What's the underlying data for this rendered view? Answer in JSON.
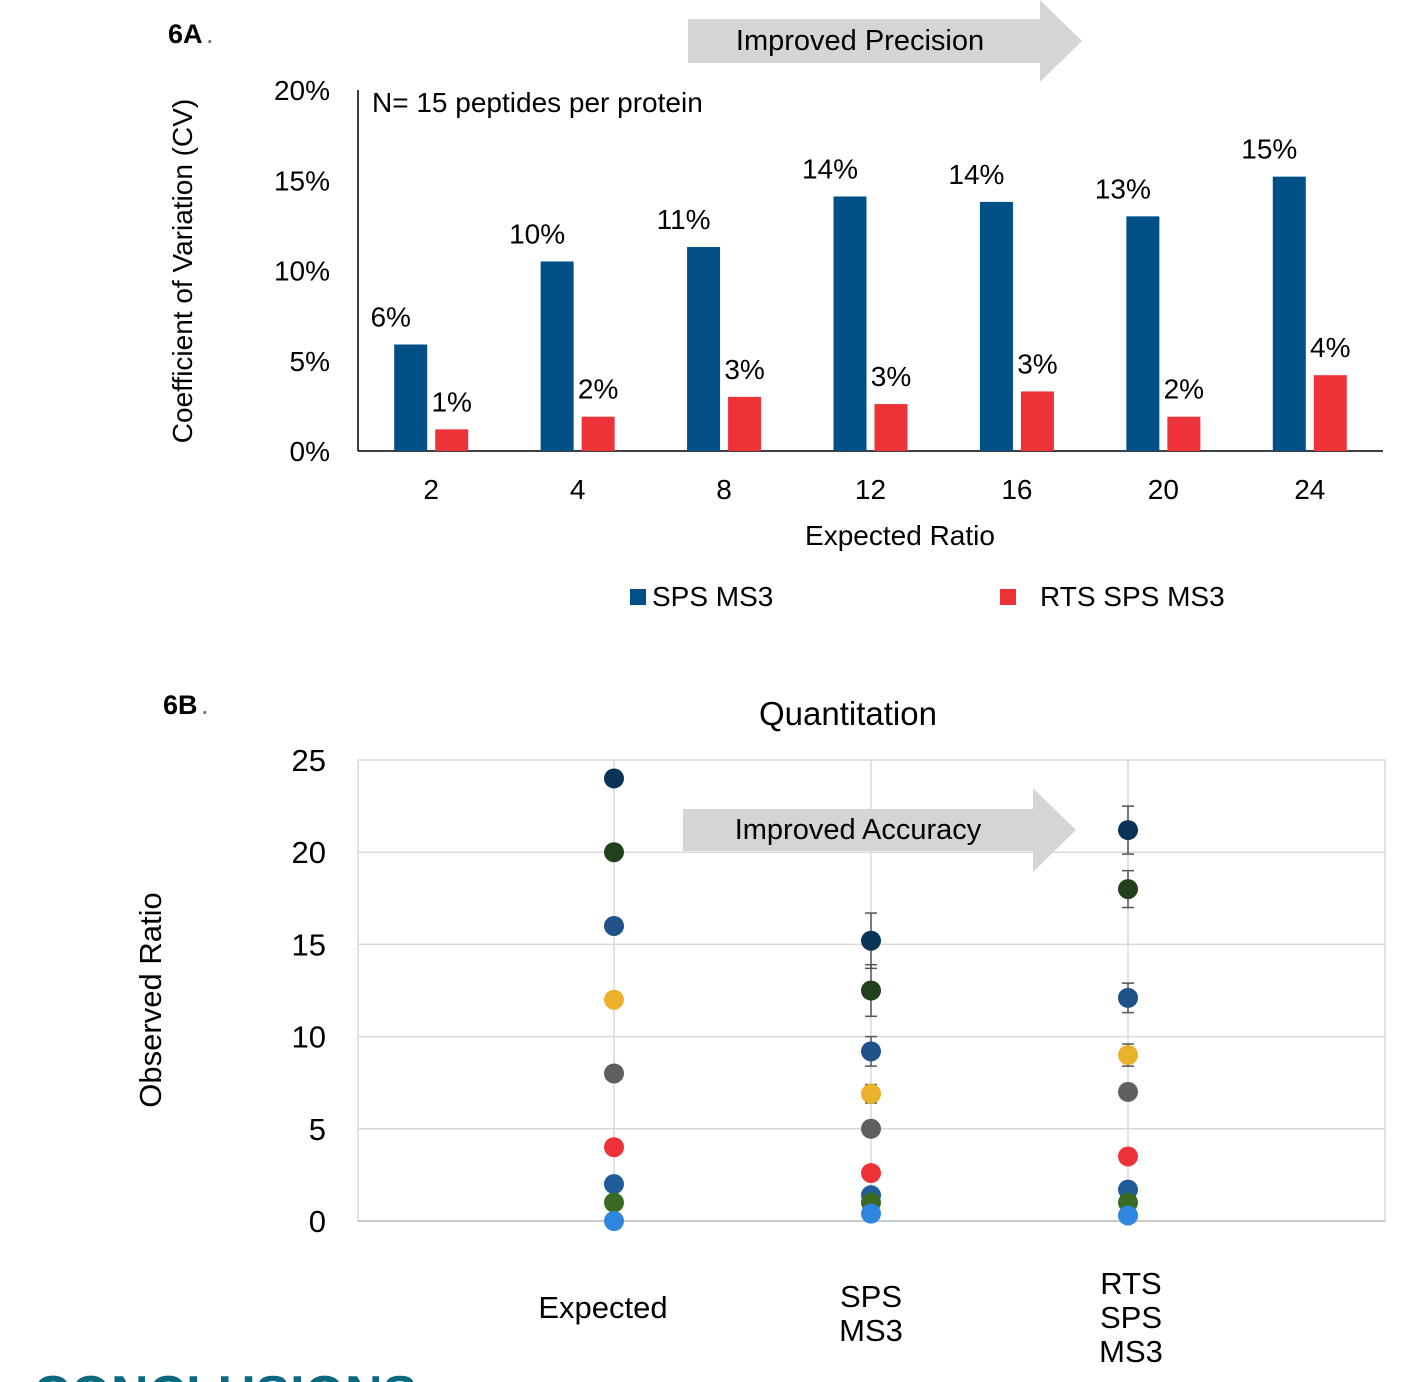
{
  "panel_a_label": "6A",
  "panel_b_label": "6B",
  "conclusions_heading": "CONCLUSIONS",
  "colors": {
    "sps": "#005088",
    "rts": "#ee3338",
    "arrow": "#d4d5d7",
    "heading": "#0b6a80",
    "grid": "#d9d9d9",
    "point_colors": [
      "#2e86de",
      "#3a6b22",
      "#1f5c99",
      "#ee3338",
      "#5f5f5f",
      "#eab12a",
      "#1f5288",
      "#22401c",
      "#0a3358"
    ]
  },
  "chart_data": [
    {
      "type": "bar",
      "arrow_label": "Improved Precision",
      "annotation": "N= 15 peptides per protein",
      "ylabel": "Coefficient of Variation (CV)",
      "xlabel": "Expected Ratio",
      "ylim": [
        0,
        20
      ],
      "yticks": [
        "0%",
        "5%",
        "10%",
        "15%",
        "20%"
      ],
      "categories": [
        "2",
        "4",
        "8",
        "12",
        "16",
        "20",
        "24"
      ],
      "series": [
        {
          "name": "SPS MS3",
          "values": [
            5.9,
            10.5,
            11.3,
            14.1,
            13.8,
            13.0,
            15.2
          ],
          "labels": [
            "6%",
            "10%",
            "11%",
            "14%",
            "14%",
            "13%",
            "15%"
          ]
        },
        {
          "name": "RTS SPS MS3",
          "values": [
            1.2,
            1.9,
            3.0,
            2.6,
            3.3,
            1.9,
            4.2
          ],
          "labels": [
            "1%",
            "2%",
            "3%",
            "3%",
            "3%",
            "2%",
            "4%"
          ]
        }
      ],
      "legend_position": "bottom"
    },
    {
      "type": "scatter",
      "title": "Quantitation",
      "arrow_label": "Improved Accuracy",
      "ylabel": "Observed Ratio",
      "ylim": [
        0,
        25
      ],
      "yticks": [
        "0",
        "5",
        "10",
        "15",
        "20",
        "25"
      ],
      "categories": [
        [
          "Expected"
        ],
        [
          "SPS",
          "MS3"
        ],
        [
          "RTS",
          "SPS",
          "MS3"
        ]
      ],
      "grid": true,
      "points": [
        {
          "cat": 0,
          "y": 24,
          "color": 8
        },
        {
          "cat": 0,
          "y": 20,
          "color": 7
        },
        {
          "cat": 0,
          "y": 16,
          "color": 6
        },
        {
          "cat": 0,
          "y": 12,
          "color": 5
        },
        {
          "cat": 0,
          "y": 8,
          "color": 4
        },
        {
          "cat": 0,
          "y": 4,
          "color": 3
        },
        {
          "cat": 0,
          "y": 2,
          "color": 2
        },
        {
          "cat": 0,
          "y": 1,
          "color": 1
        },
        {
          "cat": 0,
          "y": 0,
          "color": 0
        },
        {
          "cat": 1,
          "y": 15.2,
          "err": 1.5,
          "color": 8
        },
        {
          "cat": 1,
          "y": 12.5,
          "err": 1.4,
          "color": 7
        },
        {
          "cat": 1,
          "y": 9.2,
          "err": 0.8,
          "color": 6
        },
        {
          "cat": 1,
          "y": 6.9,
          "err": 0.5,
          "color": 5
        },
        {
          "cat": 1,
          "y": 5.0,
          "err": 0.2,
          "color": 4
        },
        {
          "cat": 1,
          "y": 2.6,
          "err": 0.2,
          "color": 3
        },
        {
          "cat": 1,
          "y": 1.4,
          "err": 0.1,
          "color": 2
        },
        {
          "cat": 1,
          "y": 1.0,
          "err": 0.1,
          "color": 1
        },
        {
          "cat": 1,
          "y": 0.4,
          "err": 0.05,
          "color": 0
        },
        {
          "cat": 2,
          "y": 21.2,
          "err": 1.3,
          "color": 8
        },
        {
          "cat": 2,
          "y": 18.0,
          "err": 1.0,
          "color": 7
        },
        {
          "cat": 2,
          "y": 12.1,
          "err": 0.8,
          "color": 6
        },
        {
          "cat": 2,
          "y": 9.0,
          "err": 0.6,
          "color": 5
        },
        {
          "cat": 2,
          "y": 7.0,
          "err": 0.2,
          "color": 4
        },
        {
          "cat": 2,
          "y": 3.5,
          "err": 0.2,
          "color": 3
        },
        {
          "cat": 2,
          "y": 1.7,
          "err": 0.1,
          "color": 2
        },
        {
          "cat": 2,
          "y": 1.0,
          "err": 0.1,
          "color": 1
        },
        {
          "cat": 2,
          "y": 0.3,
          "err": 0.05,
          "color": 0
        }
      ]
    }
  ]
}
